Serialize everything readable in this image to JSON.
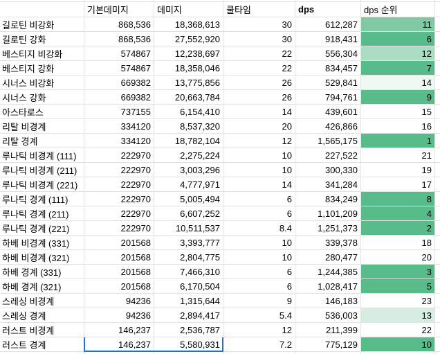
{
  "sheet": {
    "headers": {
      "corner": "",
      "base": "기본데미지",
      "damage": "데미지",
      "cooldown": "쿨타임",
      "dps": "dps",
      "rank": "dps 순위"
    },
    "rows": [
      {
        "name": "길로틴 비강화",
        "base": "868,536",
        "damage": "18,368,613",
        "cooldown": "30",
        "dps": "612,287",
        "rank": "11",
        "rank_bg": "#80C9A4"
      },
      {
        "name": "길로틴 강화",
        "base": "868,536",
        "damage": "27,552,920",
        "cooldown": "30",
        "dps": "918,431",
        "rank": "6",
        "rank_bg": "#57BB8A"
      },
      {
        "name": "베스티지 비강화",
        "base": "574867",
        "damage": "12,238,697",
        "cooldown": "22",
        "dps": "556,304",
        "rank": "12",
        "rank_bg": "#ACDCC4"
      },
      {
        "name": "베스티지 강화",
        "base": "574867",
        "damage": "18,358,046",
        "cooldown": "22",
        "dps": "834,457",
        "rank": "7",
        "rank_bg": "#57BB8A"
      },
      {
        "name": "시너스 비강화",
        "base": "669382",
        "damage": "13,775,856",
        "cooldown": "26",
        "dps": "529,841",
        "rank": "14",
        "rank_bg": "#F0F8F4"
      },
      {
        "name": "시너스 강화",
        "base": "669382",
        "damage": "20,663,784",
        "cooldown": "26",
        "dps": "794,761",
        "rank": "9",
        "rank_bg": "#57BB8A"
      },
      {
        "name": "아스타로스",
        "base": "737155",
        "damage": "6,154,410",
        "cooldown": "14",
        "dps": "439,601",
        "rank": "15",
        "rank_bg": "#FFFFFF"
      },
      {
        "name": "리탈 비경계",
        "base": "334120",
        "damage": "8,537,320",
        "cooldown": "20",
        "dps": "426,866",
        "rank": "16",
        "rank_bg": "#FFFFFF"
      },
      {
        "name": "리탈 경계",
        "base": "334120",
        "damage": "18,782,104",
        "cooldown": "12",
        "dps": "1,565,175",
        "rank": "1",
        "rank_bg": "#57BB8A"
      },
      {
        "name": "루나틱 비경계 (111)",
        "base": "222970",
        "damage": "2,275,224",
        "cooldown": "10",
        "dps": "227,522",
        "rank": "21",
        "rank_bg": "#FFFFFF"
      },
      {
        "name": "루나틱 비경계 (211)",
        "base": "222970",
        "damage": "3,003,296",
        "cooldown": "10",
        "dps": "300,330",
        "rank": "19",
        "rank_bg": "#FFFFFF"
      },
      {
        "name": "루나틱 비경계 (221)",
        "base": "222970",
        "damage": "4,777,971",
        "cooldown": "14",
        "dps": "341,284",
        "rank": "17",
        "rank_bg": "#FFFFFF"
      },
      {
        "name": "루나틱 경계 (111)",
        "base": "222970",
        "damage": "5,005,494",
        "cooldown": "6",
        "dps": "834,249",
        "rank": "8",
        "rank_bg": "#57BB8A"
      },
      {
        "name": "루나틱 경계 (211)",
        "base": "222970",
        "damage": "6,607,252",
        "cooldown": "6",
        "dps": "1,101,209",
        "rank": "4",
        "rank_bg": "#57BB8A"
      },
      {
        "name": "루나틱 경계 (221)",
        "base": "222970",
        "damage": "10,511,537",
        "cooldown": "8.4",
        "dps": "1,251,373",
        "rank": "2",
        "rank_bg": "#57BB8A"
      },
      {
        "name": "하베 비경계 (331)",
        "base": "201568",
        "damage": "3,393,777",
        "cooldown": "10",
        "dps": "339,378",
        "rank": "18",
        "rank_bg": "#FFFFFF"
      },
      {
        "name": "하베 비경계 (321)",
        "base": "201568",
        "damage": "2,804,775",
        "cooldown": "10",
        "dps": "280,477",
        "rank": "20",
        "rank_bg": "#FFFFFF"
      },
      {
        "name": "하베 경계 (331)",
        "base": "201568",
        "damage": "7,466,310",
        "cooldown": "6",
        "dps": "1,244,385",
        "rank": "3",
        "rank_bg": "#57BB8A"
      },
      {
        "name": "하베 경계 (321)",
        "base": "201568",
        "damage": "6,170,504",
        "cooldown": "6",
        "dps": "1,028,417",
        "rank": "5",
        "rank_bg": "#57BB8A"
      },
      {
        "name": "스레싱 비경계",
        "base": "94236",
        "damage": "1,315,644",
        "cooldown": "9",
        "dps": "146,183",
        "rank": "23",
        "rank_bg": "#FFFFFF"
      },
      {
        "name": "스레싱 경계",
        "base": "94236",
        "damage": "2,894,417",
        "cooldown": "5.4",
        "dps": "536,003",
        "rank": "13",
        "rank_bg": "#D6EDE1"
      },
      {
        "name": "러스트 비경계",
        "base": "146,237",
        "damage": "2,536,787",
        "cooldown": "12",
        "dps": "211,399",
        "rank": "22",
        "rank_bg": "#FFFFFF"
      },
      {
        "name": "러스트 경계",
        "base": "146,237",
        "damage": "5,580,931",
        "cooldown": "7.2",
        "dps": "775,129",
        "rank": "10",
        "rank_bg": "#57BB8A"
      }
    ],
    "colors": {
      "grid_line": "#E2E2E2",
      "rank_scale_full": "#57BB8A",
      "selection_border": "#1A73E8"
    },
    "selection": {
      "row": "러스트 경계",
      "columns": [
        "기본데미지",
        "데미지"
      ]
    }
  }
}
